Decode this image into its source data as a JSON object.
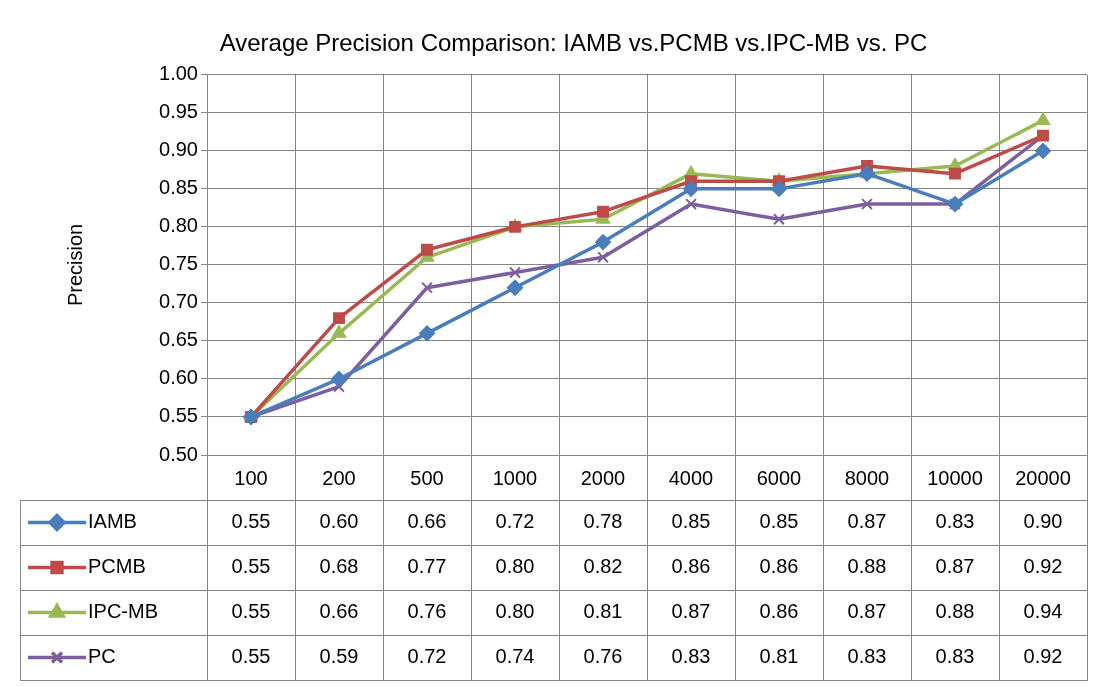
{
  "chart_data": {
    "type": "line",
    "title": "Average Precision Comparison: IAMB vs.PCMB vs.IPC-MB vs. PC",
    "ylabel": "Precision",
    "categories": [
      "100",
      "200",
      "500",
      "1000",
      "2000",
      "4000",
      "6000",
      "8000",
      "10000",
      "20000"
    ],
    "series": [
      {
        "name": "IAMB",
        "color": "#4a7ebb",
        "marker": "diamond",
        "values": [
          0.55,
          0.6,
          0.66,
          0.72,
          0.78,
          0.85,
          0.85,
          0.87,
          0.83,
          0.9
        ],
        "value_labels": [
          "0.55",
          "0.60",
          "0.66",
          "0.72",
          "0.78",
          "0.85",
          "0.85",
          "0.87",
          "0.83",
          "0.90"
        ]
      },
      {
        "name": "PCMB",
        "color": "#be4b48",
        "marker": "square",
        "values": [
          0.55,
          0.68,
          0.77,
          0.8,
          0.82,
          0.86,
          0.86,
          0.88,
          0.87,
          0.92
        ],
        "value_labels": [
          "0.55",
          "0.68",
          "0.77",
          "0.80",
          "0.82",
          "0.86",
          "0.86",
          "0.88",
          "0.87",
          "0.92"
        ]
      },
      {
        "name": "IPC-MB",
        "color": "#98b954",
        "marker": "triangle",
        "values": [
          0.55,
          0.66,
          0.76,
          0.8,
          0.81,
          0.87,
          0.86,
          0.87,
          0.88,
          0.94
        ],
        "value_labels": [
          "0.55",
          "0.66",
          "0.76",
          "0.80",
          "0.81",
          "0.87",
          "0.86",
          "0.87",
          "0.88",
          "0.94"
        ]
      },
      {
        "name": "PC",
        "color": "#7d5fa0",
        "marker": "cross",
        "values": [
          0.55,
          0.59,
          0.72,
          0.74,
          0.76,
          0.83,
          0.81,
          0.83,
          0.83,
          0.92
        ],
        "value_labels": [
          "0.55",
          "0.59",
          "0.72",
          "0.74",
          "0.76",
          "0.83",
          "0.81",
          "0.83",
          "0.83",
          "0.92"
        ]
      }
    ],
    "ylim": [
      0.5,
      1.0
    ],
    "yticks": [
      {
        "value": 0.5,
        "label": "0.50"
      },
      {
        "value": 0.55,
        "label": "0.55"
      },
      {
        "value": 0.6,
        "label": "0.60"
      },
      {
        "value": 0.65,
        "label": "0.65"
      },
      {
        "value": 0.7,
        "label": "0.70"
      },
      {
        "value": 0.75,
        "label": "0.75"
      },
      {
        "value": 0.8,
        "label": "0.80"
      },
      {
        "value": 0.85,
        "label": "0.85"
      },
      {
        "value": 0.9,
        "label": "0.90"
      },
      {
        "value": 0.95,
        "label": "0.95"
      },
      {
        "value": 1.0,
        "label": "1.00"
      }
    ],
    "grid": true,
    "legend": "bottom"
  }
}
